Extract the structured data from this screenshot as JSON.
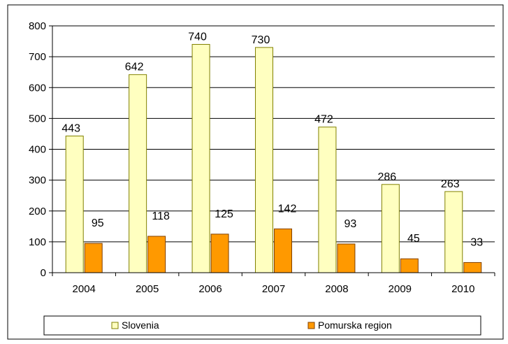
{
  "chart_data": {
    "type": "bar",
    "title": "",
    "xlabel": "",
    "ylabel": "",
    "categories": [
      "2004",
      "2005",
      "2006",
      "2007",
      "2008",
      "2009",
      "2010"
    ],
    "series": [
      {
        "name": "Slovenia",
        "values": [
          443,
          642,
          740,
          730,
          472,
          286,
          263
        ],
        "color": "#ffffc0",
        "stroke": "#808000"
      },
      {
        "name": "Pomurska region",
        "values": [
          95,
          118,
          125,
          142,
          93,
          45,
          33
        ],
        "color": "#ff9900",
        "stroke": "#804000"
      }
    ],
    "ylim": [
      0,
      800
    ],
    "yticks": [
      0,
      100,
      200,
      300,
      400,
      500,
      600,
      700,
      800
    ],
    "grid": true,
    "legend": "bottom"
  }
}
